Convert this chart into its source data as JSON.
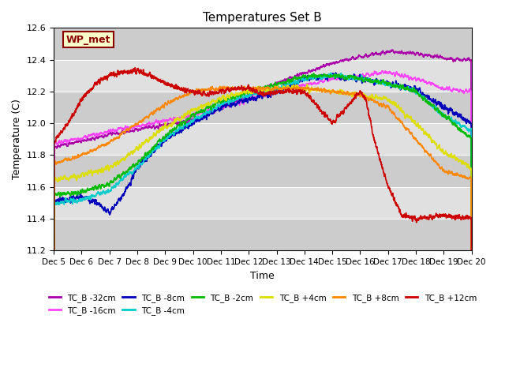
{
  "title": "Temperatures Set B",
  "xlabel": "Time",
  "ylabel": "Temperature (C)",
  "ylim": [
    11.2,
    12.6
  ],
  "yticks": [
    11.2,
    11.4,
    11.6,
    11.8,
    12.0,
    12.2,
    12.4,
    12.6
  ],
  "xtick_labels": [
    "Dec 5",
    "Dec 6",
    "Dec 7",
    "Dec 8",
    "Dec 9",
    "Dec 10",
    "Dec 11",
    "Dec 12",
    "Dec 13",
    "Dec 14",
    "Dec 15",
    "Dec 16",
    "Dec 17",
    "Dec 18",
    "Dec 19",
    "Dec 20"
  ],
  "background_color": "#ffffff",
  "ax_facecolor": "#e0e0e0",
  "band_light": "#d8d8d8",
  "band_dark": "#c8c8c8",
  "wp_met_label": "WP_met",
  "wp_met_text_color": "#8b0000",
  "wp_met_bg_color": "#ffffcc",
  "wp_met_border_color": "#8b0000",
  "series": [
    {
      "label": "TC_B -32cm",
      "color": "#aa00aa",
      "lw": 1.2
    },
    {
      "label": "TC_B -16cm",
      "color": "#ff44ff",
      "lw": 1.2
    },
    {
      "label": "TC_B -8cm",
      "color": "#0000bb",
      "lw": 1.2
    },
    {
      "label": "TC_B -4cm",
      "color": "#00cccc",
      "lw": 1.2
    },
    {
      "label": "TC_B -2cm",
      "color": "#00bb00",
      "lw": 1.2
    },
    {
      "label": "TC_B +4cm",
      "color": "#dddd00",
      "lw": 1.2
    },
    {
      "label": "TC_B +8cm",
      "color": "#ff8800",
      "lw": 1.2
    },
    {
      "label": "TC_B +12cm",
      "color": "#cc0000",
      "lw": 1.2
    }
  ],
  "n_days": 15,
  "pts_per_day": 288
}
